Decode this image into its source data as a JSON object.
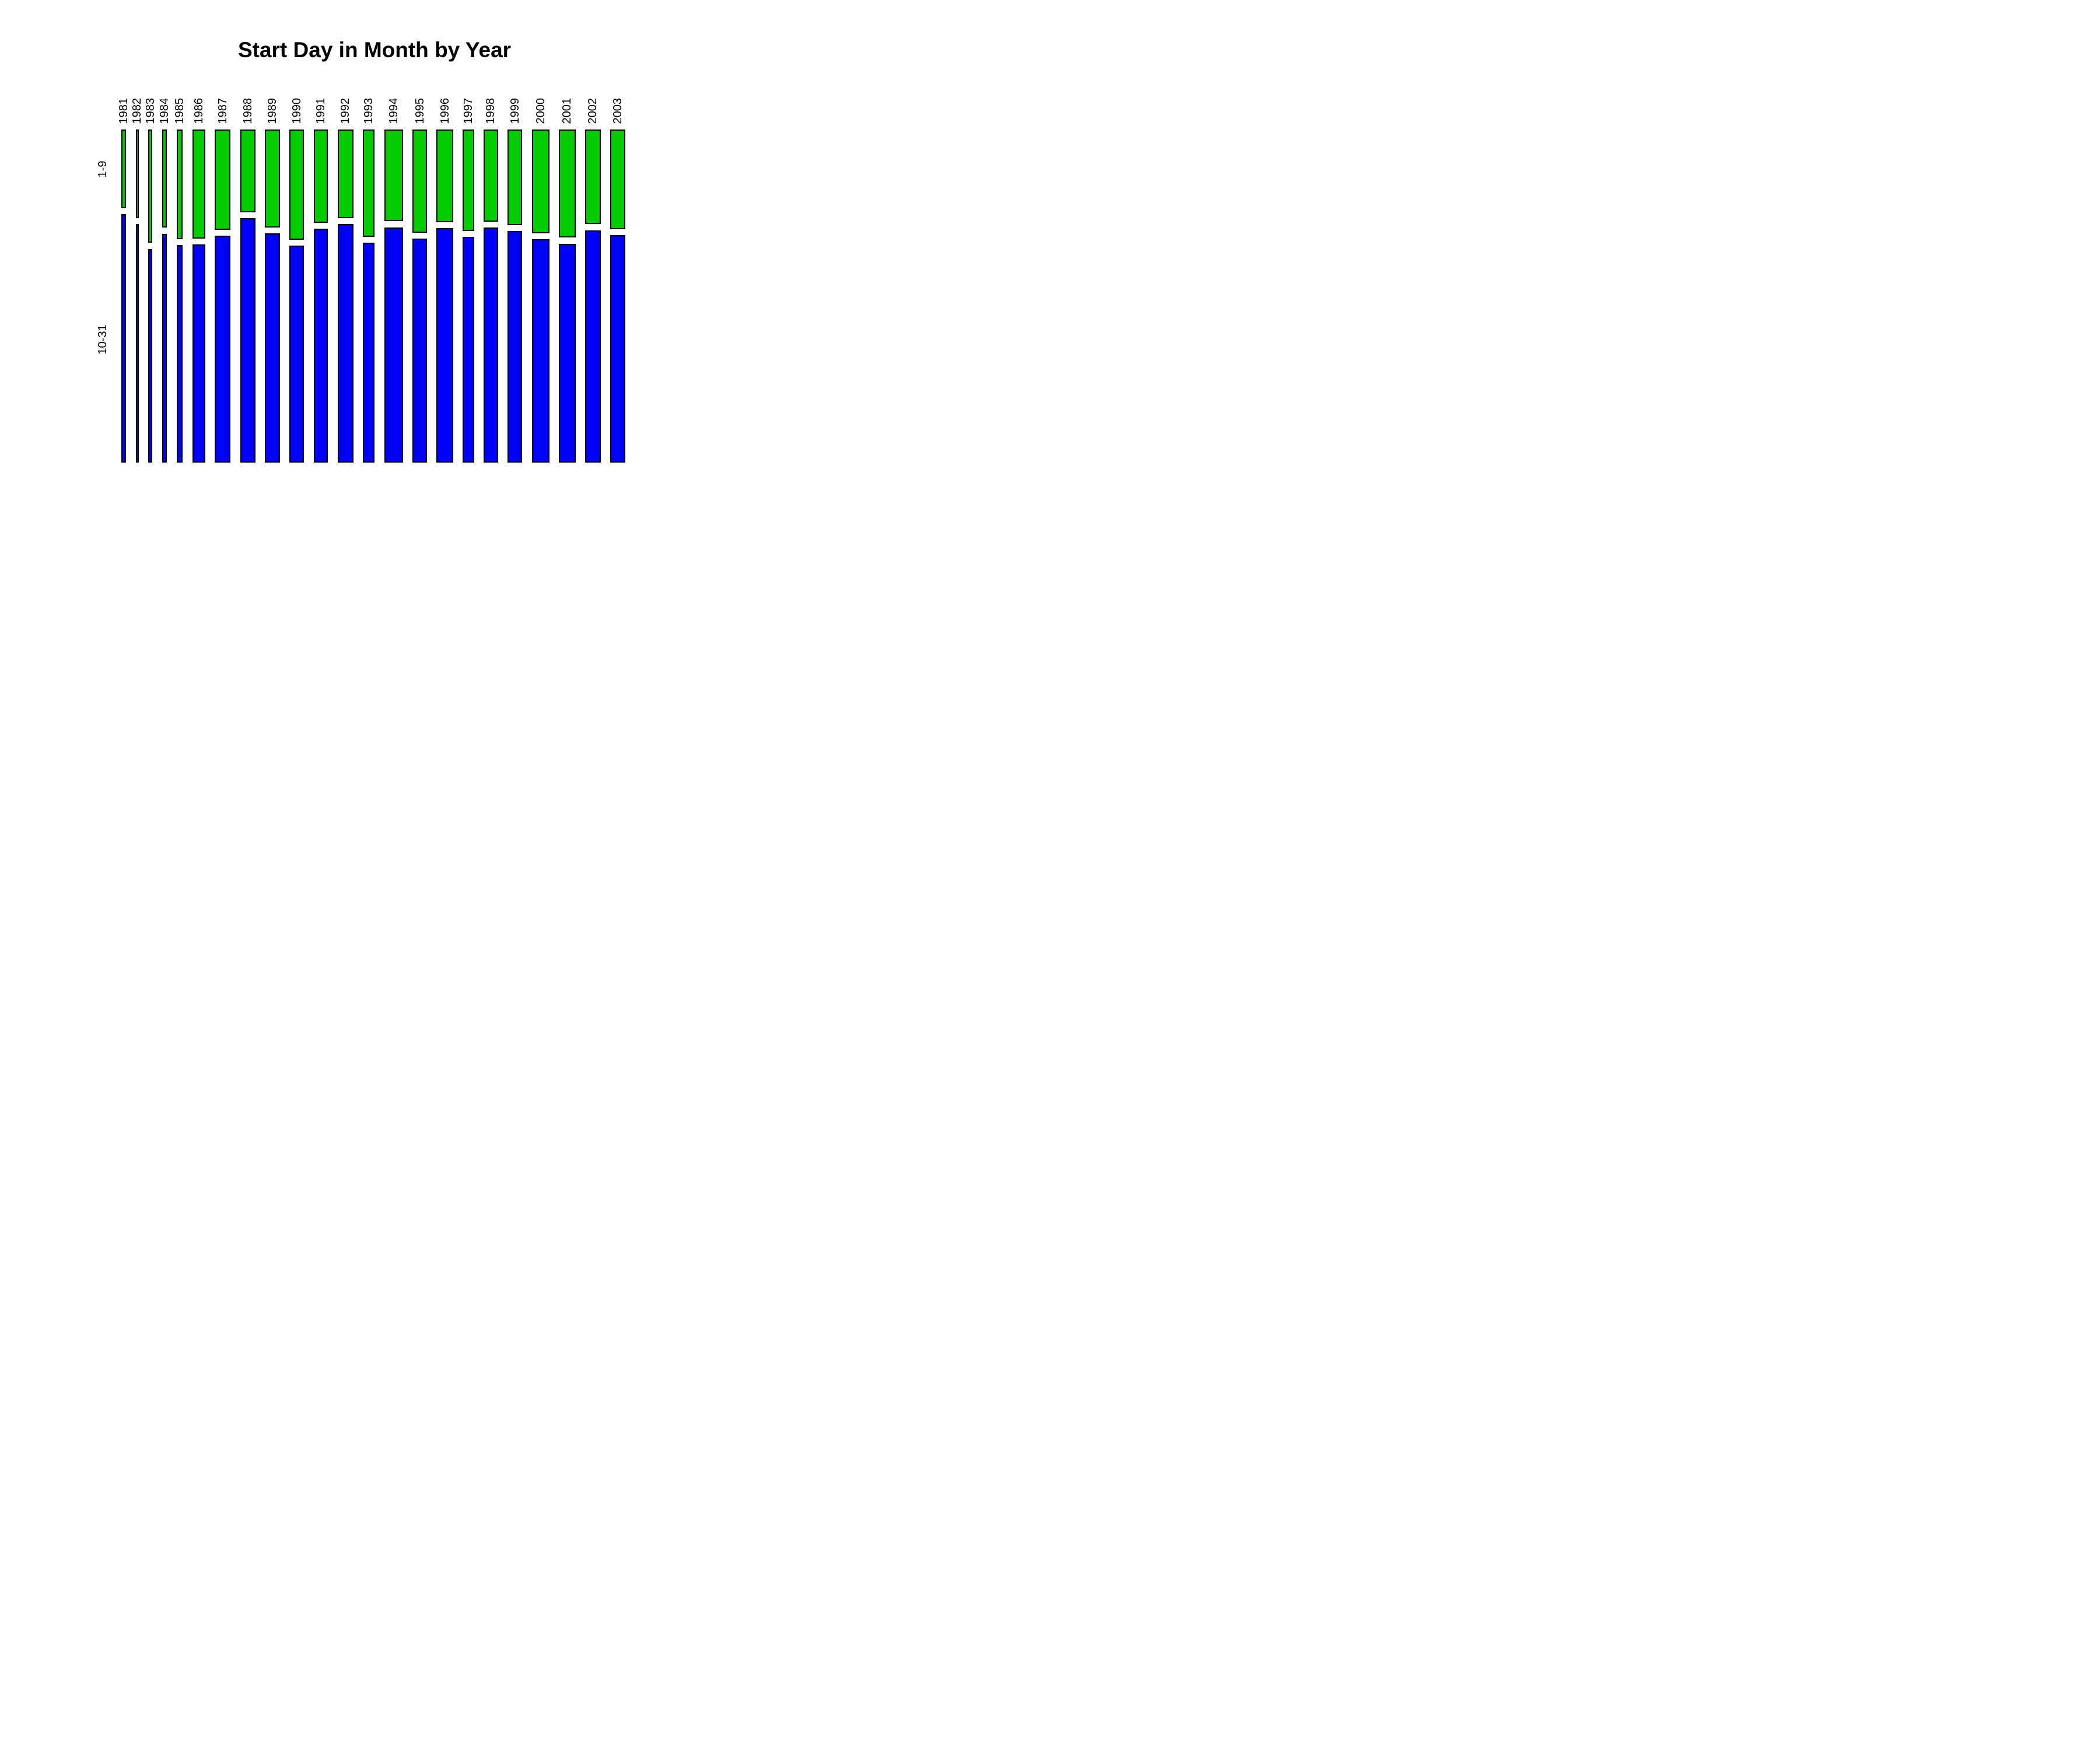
{
  "title": "Start Day in Month by Year",
  "chart_data": {
    "type": "mosaic",
    "title": "Start Day in Month by Year",
    "xlabel": "",
    "ylabel": "",
    "x_categories": [
      "1981",
      "1982",
      "1983",
      "1984",
      "1985",
      "1986",
      "1987",
      "1988",
      "1989",
      "1990",
      "1991",
      "1992",
      "1993",
      "1994",
      "1995",
      "1996",
      "1997",
      "1998",
      "1999",
      "2000",
      "2001",
      "2002",
      "2003"
    ],
    "y_categories": [
      "1-9",
      "10-31"
    ],
    "column_relative_widths": [
      26,
      16,
      22,
      26,
      32,
      68,
      82,
      80,
      77,
      77,
      74,
      82,
      62,
      98,
      75,
      86,
      60,
      74,
      77,
      92,
      86,
      81,
      79
    ],
    "series": [
      {
        "name": "1-9",
        "color": "#00CC00",
        "fractions": [
          0.24,
          0.27,
          0.346,
          0.3,
          0.335,
          0.333,
          0.306,
          0.252,
          0.299,
          0.336,
          0.285,
          0.27,
          0.327,
          0.28,
          0.315,
          0.283,
          0.309,
          0.281,
          0.292,
          0.317,
          0.33,
          0.289,
          0.304
        ]
      },
      {
        "name": "10-31",
        "color": "#0000FF",
        "fractions": [
          0.76,
          0.73,
          0.654,
          0.7,
          0.665,
          0.667,
          0.694,
          0.748,
          0.701,
          0.664,
          0.715,
          0.73,
          0.673,
          0.72,
          0.685,
          0.717,
          0.691,
          0.719,
          0.708,
          0.683,
          0.67,
          0.711,
          0.696
        ]
      }
    ],
    "layout_hints": {
      "orientation": "vertical-columns",
      "grid": false,
      "legend": false,
      "x_tick_rotation_deg": 90,
      "y_tick_rotation_deg": 90,
      "background": "#FFFFFF",
      "tile_border_color": "#000000"
    }
  }
}
